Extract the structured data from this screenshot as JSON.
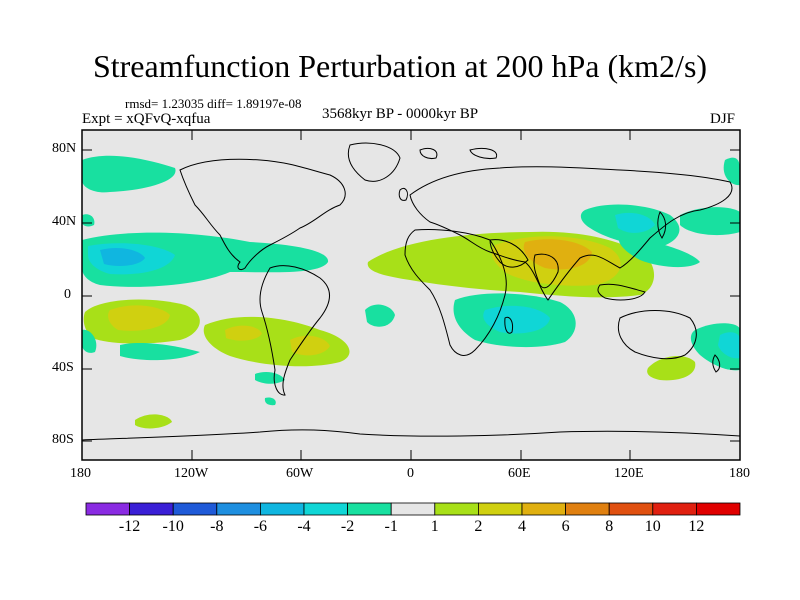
{
  "title": "Streamfunction Perturbation at 200 hPa (km2/s)",
  "stats_line": "rmsd= 1.23035 diff= 1.89197e-08",
  "experiment_line": "Expt = xQFvQ-xqfua",
  "period_line": "3568kyr BP - 0000kyr BP",
  "season": "DJF",
  "lat_labels": [
    "80N",
    "40N",
    "0",
    "40S",
    "80S"
  ],
  "lon_labels": [
    "180",
    "120W",
    "60W",
    "0",
    "60E",
    "120E",
    "180"
  ],
  "colorbar": {
    "labels": [
      "-12",
      "-10",
      "-8",
      "-6",
      "-4",
      "-2",
      "-1",
      "1",
      "2",
      "4",
      "6",
      "8",
      "10",
      "12"
    ],
    "colors": [
      "#8a2be2",
      "#3a1fd6",
      "#1f5ad8",
      "#1e8fe0",
      "#10b6e0",
      "#10d6d6",
      "#18e0a0",
      "#e6e6e6",
      "#a8e018",
      "#d0d010",
      "#e0b010",
      "#e08010",
      "#e05010",
      "#e02010",
      "#e00000"
    ]
  },
  "map_data": {
    "type": "contour-fill-map",
    "projection": "cylindrical-equidistant",
    "lon_range": [
      -180,
      180
    ],
    "lat_range": [
      -90,
      90
    ],
    "background_value_color": "#e6e6e6"
  }
}
